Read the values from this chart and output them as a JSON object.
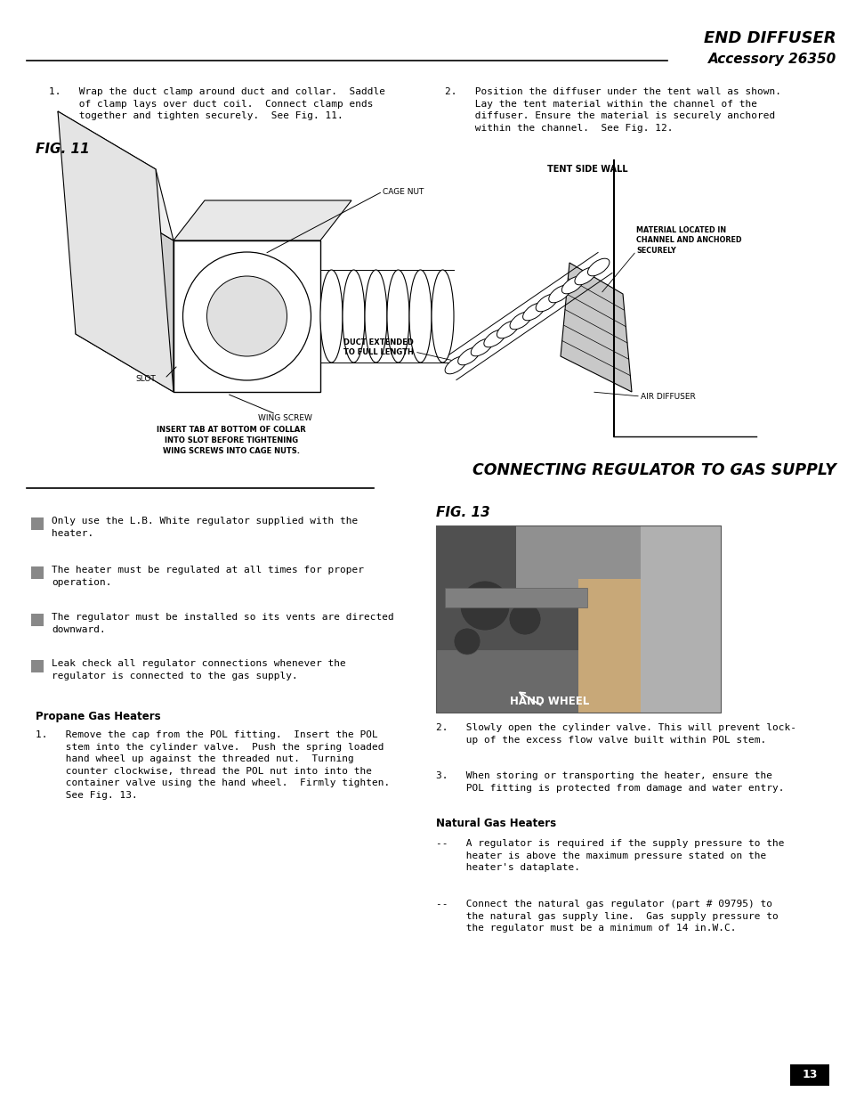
{
  "bg_color": "#ffffff",
  "page_width": 9.54,
  "page_height": 12.35,
  "top_section_header": "END DIFFUSER",
  "top_section_subheader": "Accessory 26350",
  "section2_header": "CONNECTING REGULATOR TO GAS SUPPLY",
  "fig11_label": "FIG. 11",
  "fig13_label": "FIG. 13",
  "step1_text": "1.   Wrap the duct clamp around duct and collar.  Saddle\n     of clamp lays over duct coil.  Connect clamp ends\n     together and tighten securely.  See Fig. 11.",
  "step2_text": "2.   Position the diffuser under the tent wall as shown.\n     Lay the tent material within the channel of the\n     diffuser. Ensure the material is securely anchored\n     within the channel.  See Fig. 12.",
  "bullets": [
    "Only use the L.B. White regulator supplied with the\nheater.",
    "The heater must be regulated at all times for proper\noperation.",
    "The regulator must be installed so its vents are directed\ndownward.",
    "Leak check all regulator connections whenever the\nregulator is connected to the gas supply."
  ],
  "propane_header": "Propane Gas Heaters",
  "propane_step1": "1.   Remove the cap from the POL fitting.  Insert the POL\n     stem into the cylinder valve.  Push the spring loaded\n     hand wheel up against the threaded nut.  Turning\n     counter clockwise, thread the POL nut into into the\n     container valve using the hand wheel.  Firmly tighten.\n     See Fig. 13.",
  "propane_step2": "2.   Slowly open the cylinder valve. This will prevent lock-\n     up of the excess flow valve built within POL stem.",
  "propane_step3": "3.   When storing or transporting the heater, ensure the\n     POL fitting is protected from damage and water entry.",
  "natural_header": "Natural Gas Heaters",
  "natural_bullet1": "--   A regulator is required if the supply pressure to the\n     heater is above the maximum pressure stated on the\n     heater's dataplate.",
  "natural_bullet2": "--   Connect the natural gas regulator (part # 09795) to\n     the natural gas supply line.  Gas supply pressure to\n     the regulator must be a minimum of 14 in.W.C.",
  "page_number": "13"
}
